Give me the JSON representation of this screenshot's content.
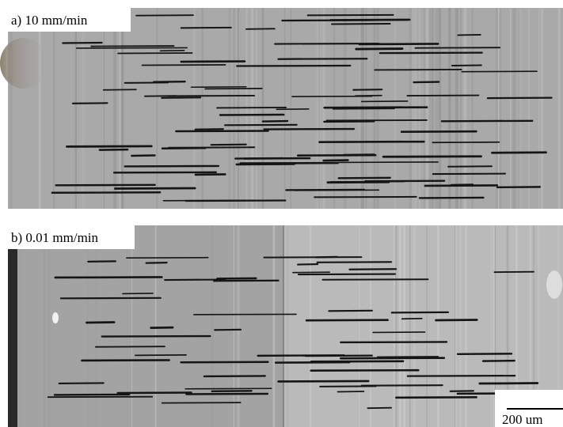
{
  "panel_a": {
    "label": "a)  10 mm/min"
  },
  "panel_b": {
    "label": "b)  0.01 mm/min",
    "scale_bar": "200 um"
  }
}
